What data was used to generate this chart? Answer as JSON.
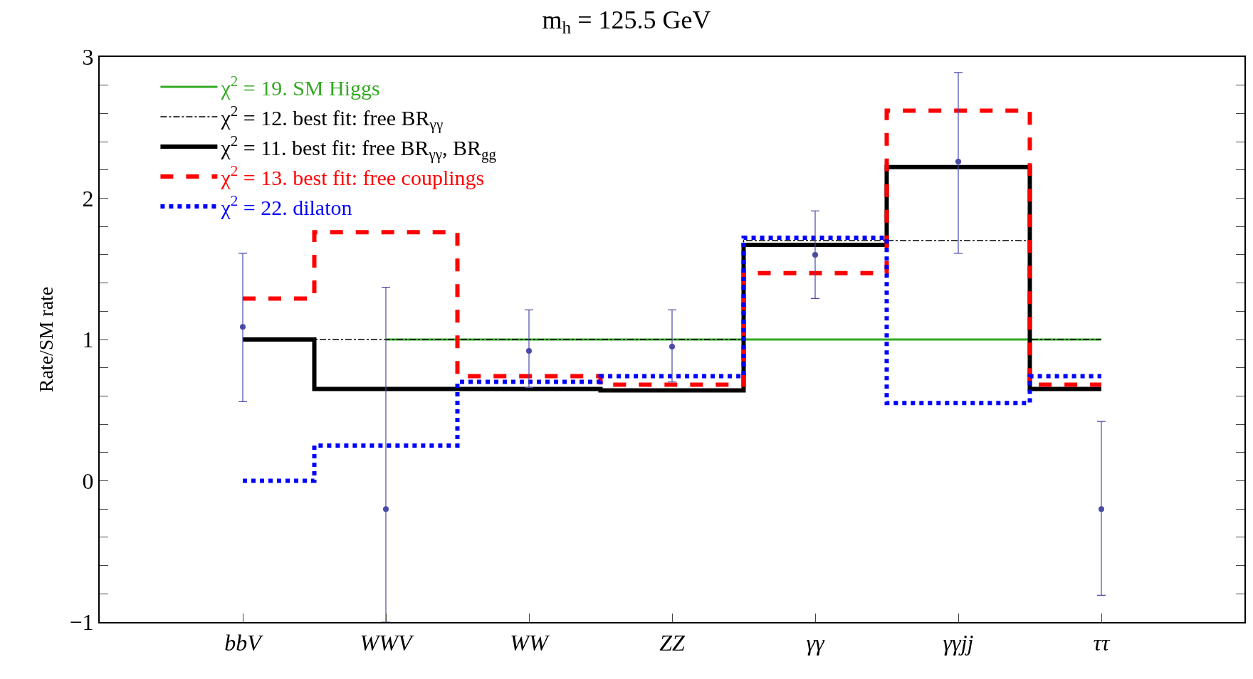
{
  "chart_data": {
    "type": "step",
    "title": "m$_{h}$ = 125.5 GeV",
    "ylabel": "Rate/SM rate",
    "categories": [
      "bbV",
      "WWV",
      "WW",
      "ZZ",
      "γγ",
      "γγjj",
      "ττ"
    ],
    "ylim": [
      -1,
      3
    ],
    "yticks": [
      -1,
      {
        "value": -0.8,
        "label": null
      },
      {
        "value": -0.6,
        "label": null
      },
      {
        "value": -0.4,
        "label": null
      },
      {
        "value": -0.2,
        "label": null
      },
      0,
      {
        "value": 0.2,
        "label": null
      },
      {
        "value": 0.4,
        "label": null
      },
      {
        "value": 0.6,
        "label": null
      },
      {
        "value": 0.8,
        "label": null
      },
      1,
      {
        "value": 1.2,
        "label": null
      },
      {
        "value": 1.4,
        "label": null
      },
      {
        "value": 1.6,
        "label": null
      },
      {
        "value": 1.8,
        "label": null
      },
      2,
      {
        "value": 2.2,
        "label": null
      },
      {
        "value": 2.4,
        "label": null
      },
      {
        "value": 2.6,
        "label": null
      },
      {
        "value": 2.8,
        "label": null
      },
      3
    ],
    "legend": "top left",
    "series": [
      {
        "name": "χ$^{2}$ = 19. SM Higgs",
        "color": "#33aa22",
        "line_style": "solid",
        "values": [
          null,
          1,
          1,
          1,
          1,
          1,
          1
        ]
      },
      {
        "name": "χ$^{2}$ = 12. best fit: free BR$_{γγ}$",
        "color": "#000000",
        "line_style": "dashdot",
        "values": [
          1,
          1,
          1,
          1,
          1.7,
          1.7,
          1
        ]
      },
      {
        "name": "χ$^{2}$ = 11. best fit: free BR$_{γγ}$, BR$_{gg}$",
        "color": "#000000",
        "line_style": "solid",
        "values": [
          1.0,
          0.65,
          0.65,
          0.64,
          1.67,
          2.22,
          0.65
        ]
      },
      {
        "name": "χ$^{2}$ = 13. best fit: free couplings",
        "color": "#ff0000",
        "line_style": "dashed",
        "values": [
          1.29,
          1.76,
          0.74,
          0.68,
          1.47,
          2.62,
          0.68
        ]
      },
      {
        "name": "χ$^{2}$ = 22. dilaton",
        "color": "#0000ff",
        "line_style": "dotted",
        "values": [
          0.0,
          0.25,
          0.7,
          0.74,
          1.72,
          0.55,
          0.74
        ]
      },
      {
        "type": "scatter",
        "color": "#4a4aa8",
        "marker": "circle",
        "values": [
          1.09,
          -0.2,
          0.92,
          0.95,
          1.6,
          2.26,
          -0.2
        ],
        "errors": [
          [
            0.56,
            1.61
          ],
          [
            -1.0,
            1.37
          ],
          [
            0.66,
            1.21
          ],
          [
            0.7,
            1.21
          ],
          [
            1.29,
            1.91
          ],
          [
            1.61,
            2.89
          ],
          [
            -0.81,
            0.42
          ]
        ]
      }
    ]
  }
}
